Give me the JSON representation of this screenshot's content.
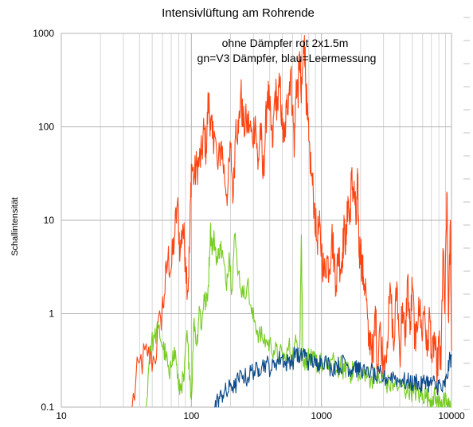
{
  "chart_data": {
    "type": "line",
    "title": "Intensivlüftung am Rohrende",
    "xlabel": "",
    "ylabel": "Schallintensität",
    "x_scale": "log",
    "y_scale": "log",
    "xlim": [
      10,
      10000
    ],
    "ylim": [
      0.1,
      1000
    ],
    "x_ticks": [
      "10",
      "100",
      "1000",
      "10000"
    ],
    "y_ticks": [
      "0.1",
      "1",
      "10",
      "100",
      "1000"
    ],
    "grid": true,
    "annotations": [
      "ohne Dämpfer rot 2x1.5m",
      "gn=V3 Dämpfer, blau=Leermessung"
    ],
    "series": [
      {
        "color": "#ff4411",
        "x": [
          35,
          40,
          46,
          52,
          58,
          62,
          66,
          70,
          74,
          78,
          82,
          86,
          90,
          94,
          97,
          100,
          105,
          110,
          115,
          120,
          125,
          130,
          135,
          140,
          145,
          150,
          160,
          170,
          180,
          190,
          200,
          210,
          220,
          230,
          240,
          250,
          265,
          280,
          295,
          310,
          325,
          340,
          355,
          370,
          385,
          400,
          420,
          440,
          460,
          480,
          500,
          520,
          540,
          560,
          580,
          600,
          620,
          640,
          660,
          680,
          700,
          720,
          740,
          760,
          780,
          800,
          840,
          880,
          920,
          960,
          1000,
          1050,
          1100,
          1150,
          1200,
          1250,
          1300,
          1350,
          1400,
          1450,
          1500,
          1550,
          1600,
          1650,
          1700,
          1750,
          1800,
          1850,
          1900,
          1950,
          2000,
          2050,
          2100,
          2200,
          2300,
          2400,
          2500,
          2600,
          2700,
          2800,
          3000,
          3200,
          3400,
          3600,
          3800,
          4000,
          4200,
          4400,
          4600,
          4800,
          5000,
          5300,
          5600,
          5900,
          6200,
          6500,
          6800,
          7100,
          7400,
          7700,
          8000,
          8300,
          8600,
          8900,
          9200,
          9500,
          9800,
          10000
        ],
        "values": [
          0.1,
          0.3,
          0.35,
          0.32,
          0.9,
          1.6,
          4.0,
          3.0,
          6.5,
          15.0,
          4.5,
          9.0,
          4.0,
          1.8,
          5.5,
          40.0,
          28.0,
          38.0,
          42.0,
          50.0,
          95.0,
          55.0,
          200.0,
          120.0,
          75.0,
          90.0,
          35.0,
          70.0,
          28.0,
          20.0,
          60.0,
          18.0,
          120.0,
          85.0,
          240.0,
          100.0,
          110.0,
          105.0,
          70.0,
          130.0,
          35.0,
          110.0,
          28.0,
          80.0,
          240.0,
          150.0,
          60.0,
          240.0,
          170.0,
          280.0,
          95.0,
          70.0,
          160.0,
          230.0,
          410.0,
          150.0,
          60.0,
          320.0,
          210.0,
          640.0,
          180.0,
          480.0,
          950.0,
          260.0,
          120.0,
          70.0,
          30.0,
          15.0,
          6.0,
          8.5,
          5.0,
          2.5,
          4.0,
          3.0,
          7.0,
          4.0,
          2.0,
          5.0,
          3.0,
          4.5,
          8.0,
          5.5,
          18.0,
          9.0,
          27.0,
          22.0,
          18.0,
          9.0,
          27.0,
          4.0,
          5.5,
          3.0,
          2.5,
          1.8,
          0.45,
          0.6,
          0.3,
          1.2,
          0.25,
          0.7,
          0.3,
          0.5,
          1.8,
          0.4,
          2.2,
          0.35,
          1.3,
          0.45,
          2.5,
          0.6,
          2.0,
          0.4,
          1.5,
          0.6,
          1.2,
          0.35,
          1.0,
          0.3,
          0.6,
          0.2,
          0.5,
          0.25,
          5.0,
          1.0,
          20.0,
          0.8,
          10.0,
          0.4
        ]
      },
      {
        "color": "#77cc22",
        "x": [
          45,
          48,
          52,
          56,
          60,
          64,
          68,
          72,
          76,
          80,
          84,
          88,
          92,
          96,
          100,
          105,
          110,
          115,
          120,
          125,
          130,
          135,
          140,
          145,
          150,
          158,
          166,
          175,
          185,
          195,
          205,
          215,
          230,
          250,
          270,
          290,
          310,
          330,
          350,
          380,
          410,
          440,
          470,
          500,
          530,
          560,
          600,
          640,
          680,
          700,
          720,
          760,
          800,
          850,
          900,
          950,
          1000,
          1100,
          1200,
          1300,
          1400,
          1500,
          1600,
          1700,
          1800,
          1900,
          2000,
          2200,
          2400,
          2600,
          2800,
          3000,
          3300,
          3600,
          3900,
          4200,
          4500,
          4800,
          5100,
          5400,
          5700,
          6000,
          6400,
          6800,
          7200,
          7600,
          8000,
          8400,
          8800,
          9200,
          9600,
          10000
        ],
        "values": [
          0.1,
          0.45,
          0.55,
          0.7,
          0.45,
          0.35,
          0.2,
          0.4,
          0.35,
          0.15,
          0.18,
          0.2,
          0.6,
          0.3,
          0.12,
          0.9,
          0.45,
          1.2,
          0.7,
          1.6,
          1.2,
          2.0,
          8.2,
          5.0,
          6.5,
          3.5,
          5.5,
          4.0,
          2.0,
          4.5,
          1.8,
          7.0,
          2.8,
          1.5,
          2.2,
          1.0,
          0.8,
          0.6,
          0.55,
          0.5,
          0.45,
          0.4,
          0.35,
          0.38,
          0.3,
          0.45,
          0.35,
          0.5,
          0.4,
          7.0,
          0.35,
          0.3,
          0.35,
          0.3,
          0.32,
          0.28,
          0.3,
          0.26,
          0.32,
          0.25,
          0.28,
          0.24,
          0.3,
          0.22,
          0.28,
          0.25,
          0.2,
          0.25,
          0.2,
          0.22,
          0.18,
          0.2,
          0.17,
          0.18,
          0.16,
          0.17,
          0.15,
          0.16,
          0.14,
          0.15,
          0.13,
          0.14,
          0.13,
          0.12,
          0.13,
          0.12,
          0.11,
          0.12,
          0.11,
          0.11,
          0.1,
          0.1
        ]
      },
      {
        "color": "#0a4a8a",
        "x": [
          150,
          160,
          170,
          180,
          190,
          200,
          215,
          230,
          250,
          270,
          290,
          310,
          330,
          350,
          380,
          410,
          440,
          470,
          500,
          530,
          560,
          600,
          640,
          680,
          720,
          760,
          800,
          850,
          900,
          950,
          1000,
          1100,
          1200,
          1300,
          1400,
          1500,
          1600,
          1700,
          1800,
          1900,
          2000,
          2200,
          2400,
          2600,
          2800,
          3000,
          3300,
          3600,
          3900,
          4200,
          4500,
          4800,
          5100,
          5400,
          5700,
          6000,
          6400,
          6800,
          7200,
          7600,
          8000,
          8400,
          8800,
          9200,
          9600,
          10000
        ],
        "values": [
          0.1,
          0.12,
          0.13,
          0.15,
          0.14,
          0.18,
          0.16,
          0.2,
          0.22,
          0.2,
          0.25,
          0.24,
          0.26,
          0.28,
          0.3,
          0.25,
          0.3,
          0.32,
          0.35,
          0.28,
          0.33,
          0.3,
          0.42,
          0.3,
          0.4,
          0.35,
          0.3,
          0.32,
          0.28,
          0.3,
          0.33,
          0.3,
          0.25,
          0.3,
          0.26,
          0.33,
          0.27,
          0.25,
          0.3,
          0.24,
          0.27,
          0.22,
          0.25,
          0.2,
          0.23,
          0.2,
          0.21,
          0.22,
          0.19,
          0.2,
          0.18,
          0.19,
          0.17,
          0.2,
          0.16,
          0.18,
          0.2,
          0.17,
          0.19,
          0.16,
          0.18,
          0.15,
          0.17,
          0.2,
          0.3,
          0.35
        ]
      }
    ]
  }
}
